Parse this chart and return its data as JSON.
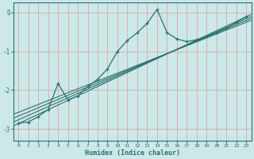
{
  "xlabel": "Humidex (Indice chaleur)",
  "ylabel": "",
  "bg_color": "#cce8e8",
  "grid_color": "#d8a8a8",
  "line_color": "#2d7070",
  "x_values": [
    0,
    1,
    2,
    3,
    4,
    5,
    6,
    7,
    8,
    9,
    10,
    11,
    12,
    13,
    14,
    15,
    16,
    17,
    18,
    19,
    20,
    21,
    22,
    23
  ],
  "y_main": [
    -2.85,
    -2.82,
    -2.68,
    -2.5,
    -1.83,
    -2.25,
    -2.15,
    -1.9,
    -1.72,
    -1.45,
    -1.0,
    -0.72,
    -0.52,
    -0.28,
    0.08,
    -0.52,
    -0.68,
    -0.75,
    -0.7,
    -0.62,
    -0.52,
    -0.4,
    -0.25,
    -0.1
  ],
  "ylim": [
    -3.3,
    0.25
  ],
  "xlim": [
    -0.5,
    23.5
  ],
  "yticks": [
    0,
    -1,
    -2,
    -3
  ],
  "xticks": [
    0,
    1,
    2,
    3,
    4,
    5,
    6,
    7,
    8,
    9,
    10,
    11,
    12,
    13,
    14,
    15,
    16,
    17,
    18,
    19,
    20,
    21,
    22,
    23
  ],
  "regr_lines": [
    [
      [
        -0.5,
        23.5
      ],
      [
        -2.92,
        -0.05
      ]
    ],
    [
      [
        -0.5,
        23.5
      ],
      [
        -2.82,
        -0.1
      ]
    ],
    [
      [
        -0.5,
        23.5
      ],
      [
        -2.72,
        -0.15
      ]
    ],
    [
      [
        -0.5,
        23.5
      ],
      [
        -2.62,
        -0.2
      ]
    ]
  ]
}
